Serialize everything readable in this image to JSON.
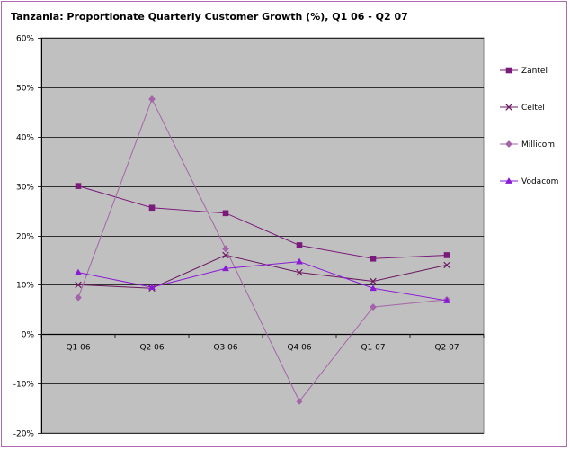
{
  "chart_data": {
    "type": "line",
    "title": "Tanzania: Proportionate Quarterly Customer Growth (%), Q1 06 - Q2 07",
    "xlabel": "",
    "ylabel": "",
    "ylim": [
      -20,
      60
    ],
    "ytick_values": [
      -20,
      -10,
      0,
      10,
      20,
      30,
      40,
      50,
      60
    ],
    "ytick_labels": [
      "-20%",
      "-10%",
      "0%",
      "10%",
      "20%",
      "30%",
      "40%",
      "50%",
      "60%"
    ],
    "grid": true,
    "legend_position": "right",
    "categories": [
      "Q1 06",
      "Q2 06",
      "Q3 06",
      "Q4 06",
      "Q1 07",
      "Q2 07"
    ],
    "series": [
      {
        "name": "Zantel",
        "marker": "square",
        "color": "#7a1a7a",
        "values": [
          30,
          25.6,
          24.5,
          18,
          15.3,
          16
        ]
      },
      {
        "name": "Celtel",
        "marker": "x",
        "color": "#6a1860",
        "values": [
          10,
          9.3,
          16,
          12.5,
          10.7,
          14
        ]
      },
      {
        "name": "Millicom",
        "marker": "diamond",
        "color": "#a465a8",
        "values": [
          7.4,
          47.6,
          17.3,
          -13.6,
          5.5,
          7
        ]
      },
      {
        "name": "Vodacom",
        "marker": "triangle",
        "color": "#8a1ad6",
        "values": [
          12.5,
          9.5,
          13.3,
          14.7,
          9.3,
          6.8
        ]
      }
    ]
  }
}
